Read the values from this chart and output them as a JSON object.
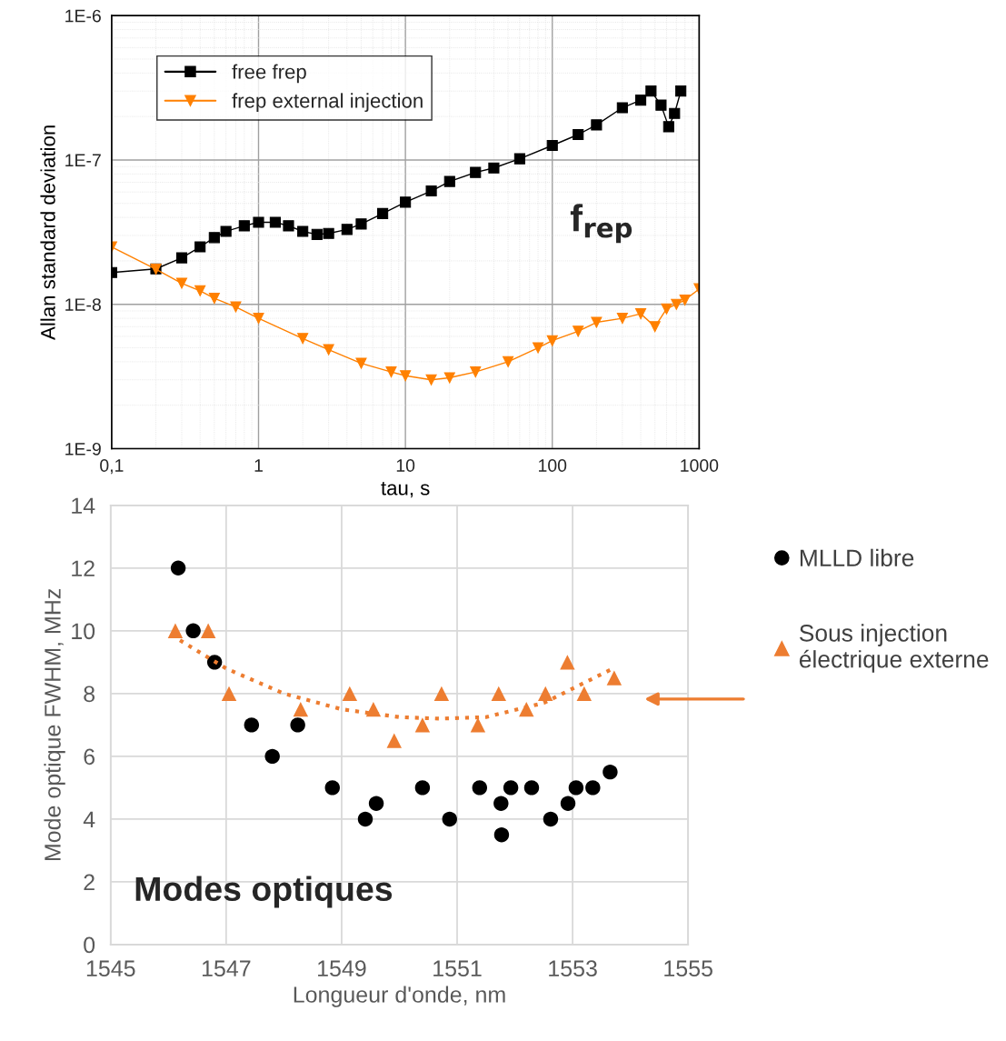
{
  "chart_data": [
    {
      "type": "line",
      "xlabel": "tau, s",
      "ylabel": "Allan standard deviation",
      "log": "xy",
      "grid": true,
      "legend": "top left",
      "xlim": [
        0.1,
        1000
      ],
      "ylim": [
        1e-09,
        1e-06
      ],
      "xticks": [
        {
          "value": 0.1,
          "label": "0,1"
        },
        1,
        10,
        100,
        1000
      ],
      "yticks": [
        {
          "value": 1e-09,
          "label": "1E-9"
        },
        {
          "value": 1e-08,
          "label": "1E-8"
        },
        {
          "value": 1e-07,
          "label": "1E-7"
        },
        {
          "value": 1e-06,
          "label": "1E-6"
        }
      ],
      "annotations": [
        "f$_{rep}$"
      ],
      "series": [
        {
          "name": "free frep",
          "color": "#000000",
          "marker": "square",
          "x": [
            0.1,
            0.2,
            0.3,
            0.4,
            0.5,
            0.6,
            0.8,
            1.0,
            1.3,
            1.6,
            2.0,
            2.5,
            3,
            4,
            5,
            7,
            10,
            15,
            20,
            30,
            40,
            60,
            100,
            150,
            200,
            300,
            400,
            470,
            550,
            620,
            680,
            750
          ],
          "values": [
            1.66e-08,
            1.76e-08,
            2.1e-08,
            2.5e-08,
            2.9e-08,
            3.2e-08,
            3.5e-08,
            3.7e-08,
            3.7e-08,
            3.5e-08,
            3.2e-08,
            3.05e-08,
            3.1e-08,
            3.3e-08,
            3.6e-08,
            4.25e-08,
            5.1e-08,
            6.1e-08,
            7.1e-08,
            8.2e-08,
            8.8e-08,
            1.02e-07,
            1.26e-07,
            1.5e-07,
            1.75e-07,
            2.3e-07,
            2.6e-07,
            3e-07,
            2.4e-07,
            1.7e-07,
            2.1e-07,
            3e-07
          ]
        },
        {
          "name": "frep external injection",
          "color": "#ff8000",
          "marker": "triangle-down",
          "x": [
            0.1,
            0.2,
            0.3,
            0.4,
            0.5,
            0.7,
            1.0,
            2,
            3,
            5,
            8,
            10,
            15,
            20,
            30,
            50,
            80,
            100,
            150,
            200,
            300,
            400,
            500,
            600,
            700,
            800,
            1000
          ],
          "values": [
            2.5e-08,
            1.75e-08,
            1.4e-08,
            1.24e-08,
            1.1e-08,
            9.6e-09,
            8e-09,
            5.8e-09,
            4.85e-09,
            3.9e-09,
            3.4e-09,
            3.2e-09,
            3e-09,
            3.1e-09,
            3.4e-09,
            4e-09,
            5e-09,
            5.6e-09,
            6.5e-09,
            7.5e-09,
            8e-09,
            8.6e-09,
            7e-09,
            9.3e-09,
            1e-08,
            1.07e-08,
            1.28e-08
          ]
        }
      ]
    },
    {
      "type": "scatter",
      "xlabel": "Longueur d'onde, nm",
      "ylabel": "Mode optique FWHM, MHz",
      "grid": true,
      "legend": "right",
      "xlim": [
        1545,
        1555
      ],
      "ylim": [
        0,
        14
      ],
      "xticks": [
        1545,
        1547,
        1549,
        1551,
        1553,
        1555
      ],
      "yticks": [
        0,
        2,
        4,
        6,
        8,
        10,
        12,
        14
      ],
      "annotations": [
        "Modes optiques"
      ],
      "series": [
        {
          "name": "MLLD libre",
          "color": "#000000",
          "marker": "circle",
          "x": [
            1546.17,
            1546.43,
            1546.8,
            1547.44,
            1547.8,
            1548.24,
            1548.84,
            1549.41,
            1549.6,
            1550.4,
            1550.87,
            1551.39,
            1551.76,
            1551.77,
            1551.93,
            1552.29,
            1552.62,
            1552.92,
            1553.06,
            1553.35,
            1553.65
          ],
          "values": [
            12,
            10,
            9,
            7,
            6,
            7,
            5,
            4,
            4.5,
            5,
            4,
            5,
            4.5,
            3.5,
            5,
            5,
            4,
            4.5,
            5,
            5,
            5.5
          ]
        },
        {
          "name": "Sous injection\nélectrique externe",
          "color": "#ed7d31",
          "marker": "triangle",
          "x": [
            1546.12,
            1546.69,
            1547.05,
            1548.29,
            1549.14,
            1549.55,
            1549.91,
            1550.4,
            1550.73,
            1551.36,
            1551.72,
            1552.2,
            1552.53,
            1552.91,
            1553.2,
            1553.72
          ],
          "values": [
            10,
            10,
            8,
            7.5,
            8,
            7.5,
            6.5,
            7,
            8,
            7,
            8,
            7.5,
            8,
            9,
            8,
            8.5
          ]
        },
        {
          "type": "line",
          "color": "#ed7d31",
          "line_style": "dotted",
          "marker": "none",
          "x": [
            1546.2,
            1547,
            1548,
            1549,
            1550,
            1550.7,
            1551.5,
            1552.5,
            1553.7
          ],
          "values": [
            9.7,
            8.8,
            8.0,
            7.5,
            7.25,
            7.2,
            7.25,
            7.7,
            8.8
          ]
        }
      ]
    }
  ]
}
